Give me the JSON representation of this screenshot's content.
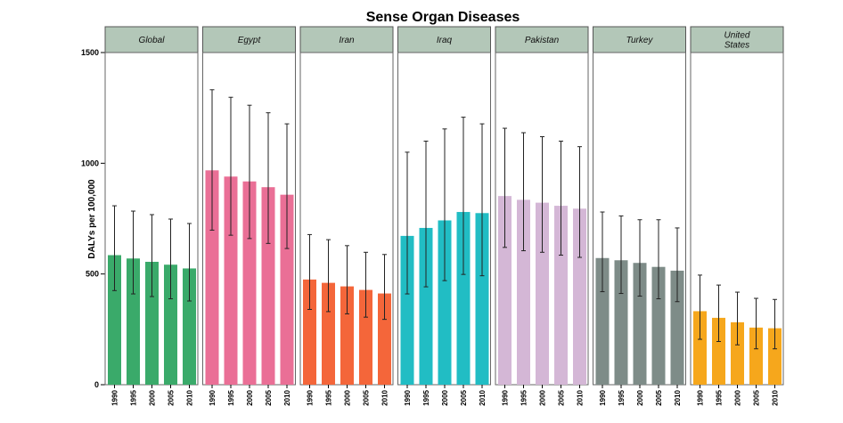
{
  "chart_data": {
    "type": "bar",
    "title": "Sense Organ Diseases",
    "ylabel": "DALYs per 100,000",
    "xlabel": "",
    "ylim": [
      0,
      1500
    ],
    "yticks": [
      0,
      500,
      1000,
      1500
    ],
    "categories": [
      "1990",
      "1995",
      "2000",
      "2005",
      "2010"
    ],
    "facets": [
      {
        "name": "Global",
        "label_lines": [
          "Global"
        ],
        "color": "#3aaa6a",
        "values": [
          585,
          570,
          555,
          542,
          525
        ],
        "lower": [
          425,
          410,
          398,
          388,
          378
        ],
        "upper": [
          808,
          784,
          768,
          748,
          728
        ]
      },
      {
        "name": "Egypt",
        "label_lines": [
          "Egypt"
        ],
        "color": "#ea6f96",
        "values": [
          968,
          940,
          918,
          892,
          858
        ],
        "lower": [
          698,
          675,
          660,
          638,
          615
        ],
        "upper": [
          1332,
          1298,
          1262,
          1228,
          1178
        ]
      },
      {
        "name": "Iran",
        "label_lines": [
          "Iran"
        ],
        "color": "#f4663a",
        "values": [
          475,
          460,
          444,
          428,
          412
        ],
        "lower": [
          340,
          330,
          320,
          305,
          295
        ],
        "upper": [
          678,
          655,
          628,
          598,
          588
        ]
      },
      {
        "name": "Iraq",
        "label_lines": [
          "Iraq"
        ],
        "color": "#21bdc4",
        "values": [
          672,
          708,
          742,
          780,
          775
        ],
        "lower": [
          410,
          442,
          470,
          498,
          492
        ],
        "upper": [
          1050,
          1100,
          1155,
          1208,
          1178
        ]
      },
      {
        "name": "Pakistan",
        "label_lines": [
          "Pakistan"
        ],
        "color": "#d4b7d6",
        "values": [
          852,
          835,
          822,
          808,
          795
        ],
        "lower": [
          620,
          605,
          598,
          585,
          575
        ],
        "upper": [
          1158,
          1138,
          1120,
          1100,
          1075
        ]
      },
      {
        "name": "Turkey",
        "label_lines": [
          "Turkey"
        ],
        "color": "#7e8c88",
        "values": [
          572,
          562,
          550,
          532,
          515
        ],
        "lower": [
          420,
          412,
          400,
          388,
          375
        ],
        "upper": [
          780,
          762,
          745,
          745,
          708
        ]
      },
      {
        "name": "United States",
        "label_lines": [
          "United",
          "States"
        ],
        "color": "#f6a71c",
        "values": [
          332,
          302,
          282,
          258,
          255
        ],
        "lower": [
          205,
          195,
          180,
          162,
          162
        ],
        "upper": [
          495,
          450,
          418,
          390,
          385
        ]
      }
    ]
  }
}
